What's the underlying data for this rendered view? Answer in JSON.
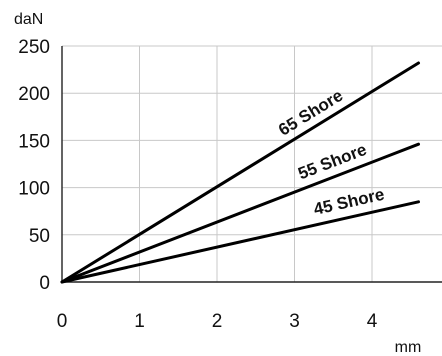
{
  "chart_data": {
    "type": "line",
    "title": "",
    "xlabel": "mm",
    "ylabel": "daN",
    "xlim": [
      0,
      4.7
    ],
    "ylim": [
      0,
      250
    ],
    "x_ticks": [
      0,
      1,
      2,
      3,
      4
    ],
    "y_ticks": [
      0,
      50,
      100,
      150,
      200,
      250
    ],
    "grid": true,
    "legend": "none (series labeled inline along lines)",
    "series": [
      {
        "name": "65 Shore",
        "x": [
          0,
          4.6
        ],
        "y": [
          0,
          232
        ],
        "color": "#000000"
      },
      {
        "name": "55 Shore",
        "x": [
          0,
          4.6
        ],
        "y": [
          0,
          146
        ],
        "color": "#000000"
      },
      {
        "name": "45 Shore",
        "x": [
          0,
          4.6
        ],
        "y": [
          0,
          85
        ],
        "color": "#000000"
      }
    ]
  }
}
